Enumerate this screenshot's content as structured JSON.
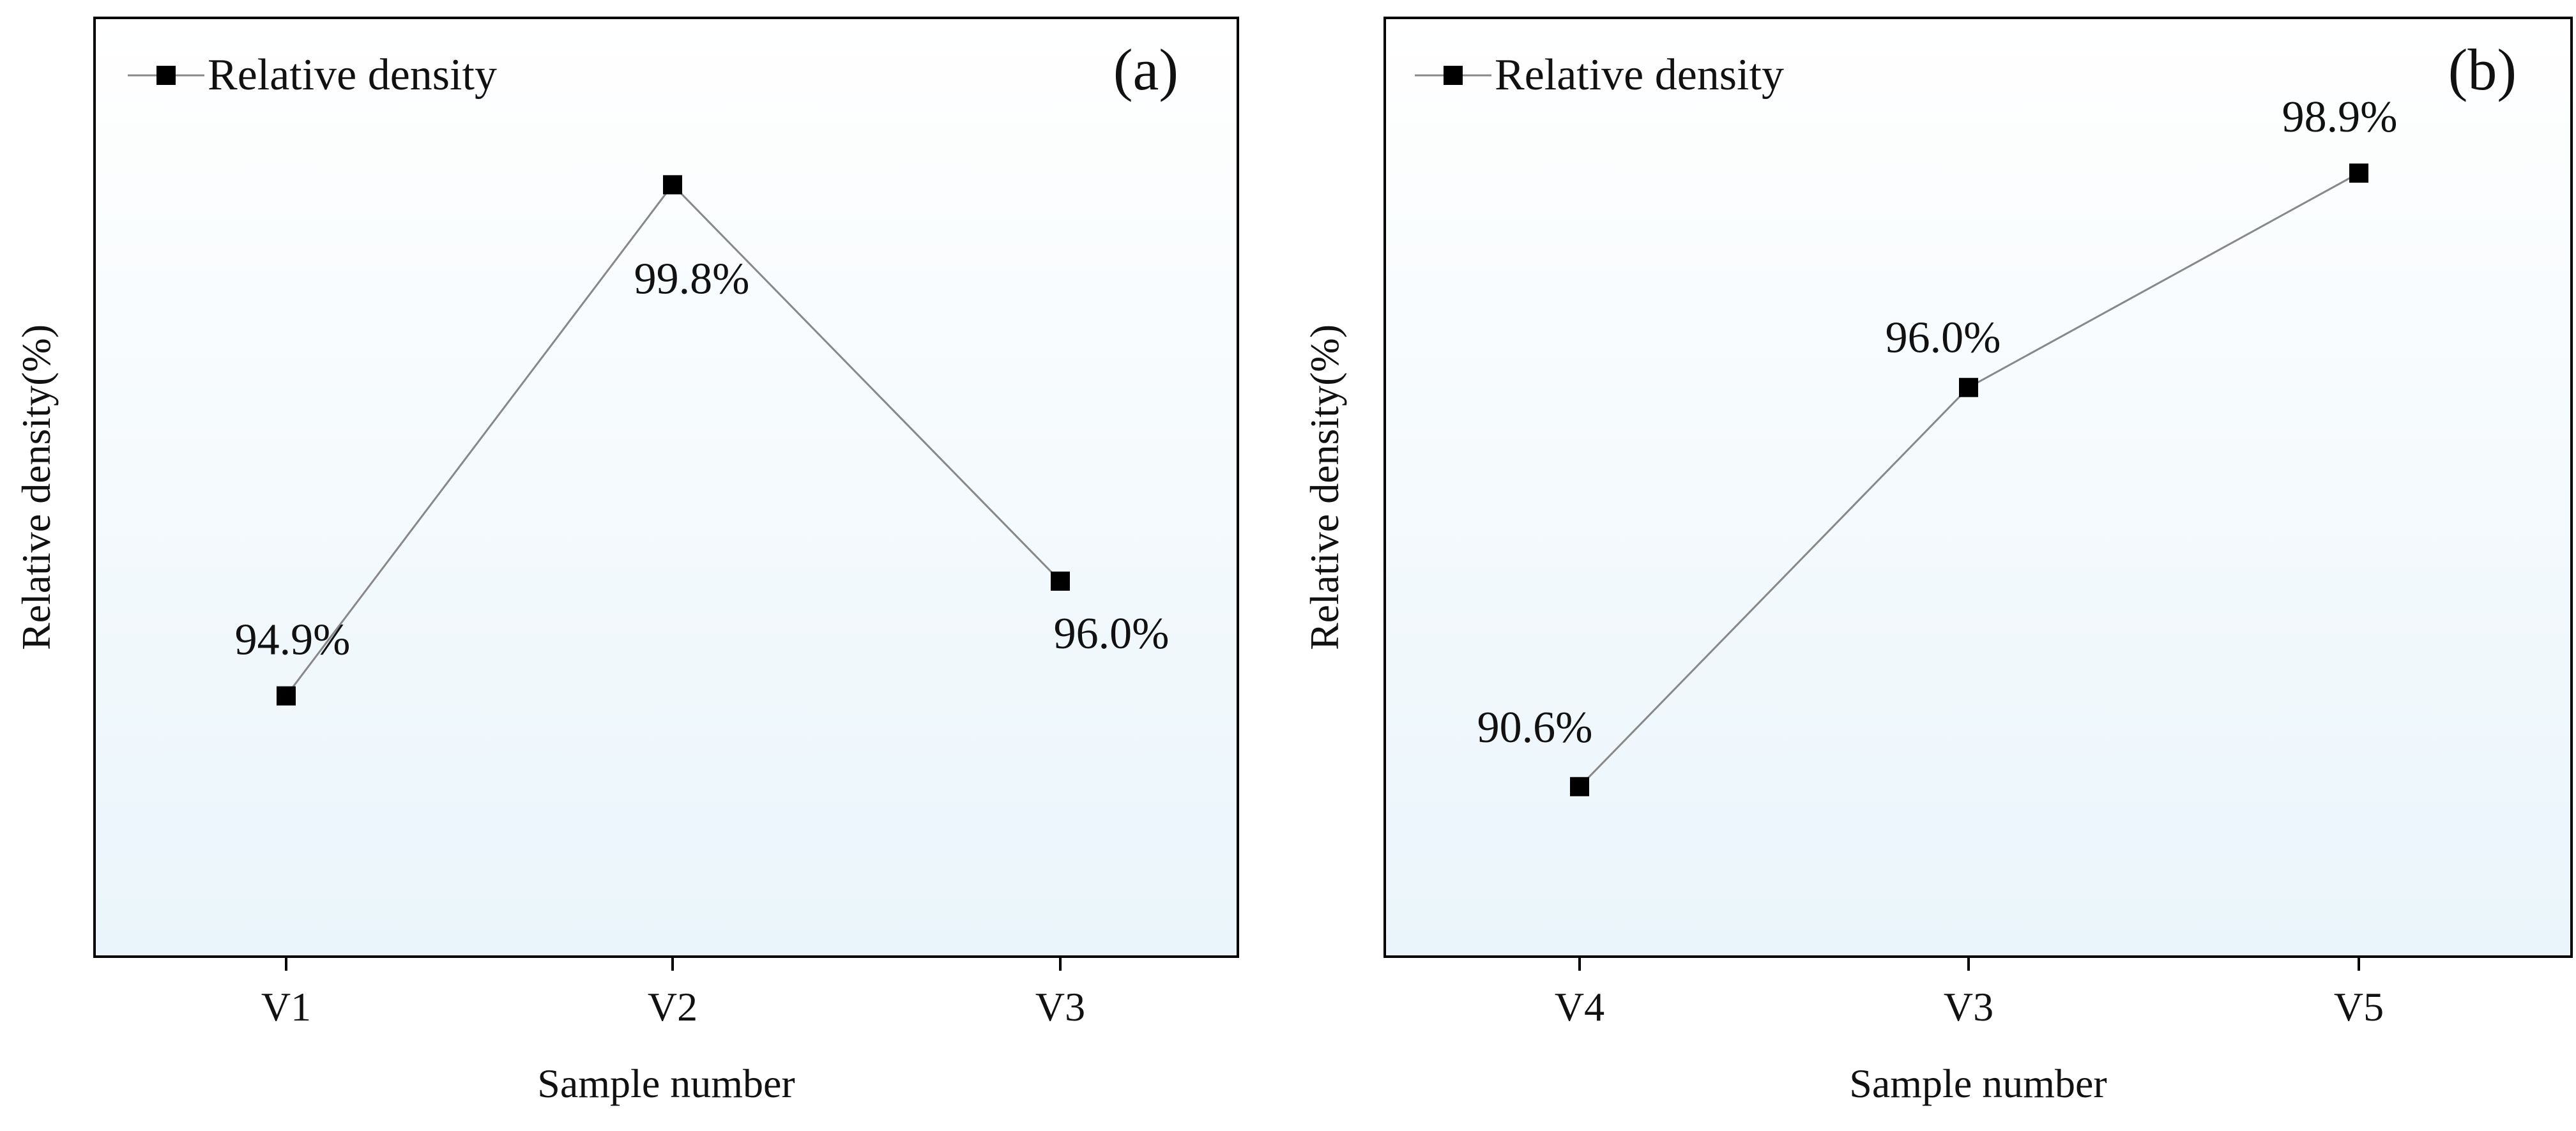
{
  "chart_data": [
    {
      "type": "line",
      "panel_label": "(a)",
      "categories": [
        "V1",
        "V2",
        "V3"
      ],
      "series": [
        {
          "name": "Relative density",
          "values": [
            94.9,
            99.8,
            96.0
          ],
          "marker": "square"
        }
      ],
      "data_labels": [
        "94.9%",
        "99.8%",
        "96.0%"
      ],
      "title": "",
      "xlabel": "Sample number",
      "ylabel": "Relative density(%)",
      "ylim": [
        92.4,
        101.4
      ],
      "legend": {
        "label": "Relative density",
        "position": "top-left"
      },
      "colors": {
        "line": "#888888",
        "marker": "#000000",
        "axis": "#000000",
        "background_top": "#ffffff",
        "background_bottom": "#eaf5fb"
      }
    },
    {
      "type": "line",
      "panel_label": "(b)",
      "categories": [
        "V4",
        "V3",
        "V5"
      ],
      "series": [
        {
          "name": "Relative density",
          "values": [
            90.6,
            96.0,
            98.9
          ],
          "marker": "square"
        }
      ],
      "data_labels": [
        "90.6%",
        "96.0%",
        "98.9%"
      ],
      "title": "",
      "xlabel": "Sample number",
      "ylabel": "Relative density(%)",
      "ylim": [
        88.3,
        101.0
      ],
      "legend": {
        "label": "Relative density",
        "position": "top-left"
      },
      "colors": {
        "line": "#888888",
        "marker": "#000000",
        "axis": "#000000",
        "background_top": "#ffffff",
        "background_bottom": "#eaf5fb"
      }
    }
  ]
}
